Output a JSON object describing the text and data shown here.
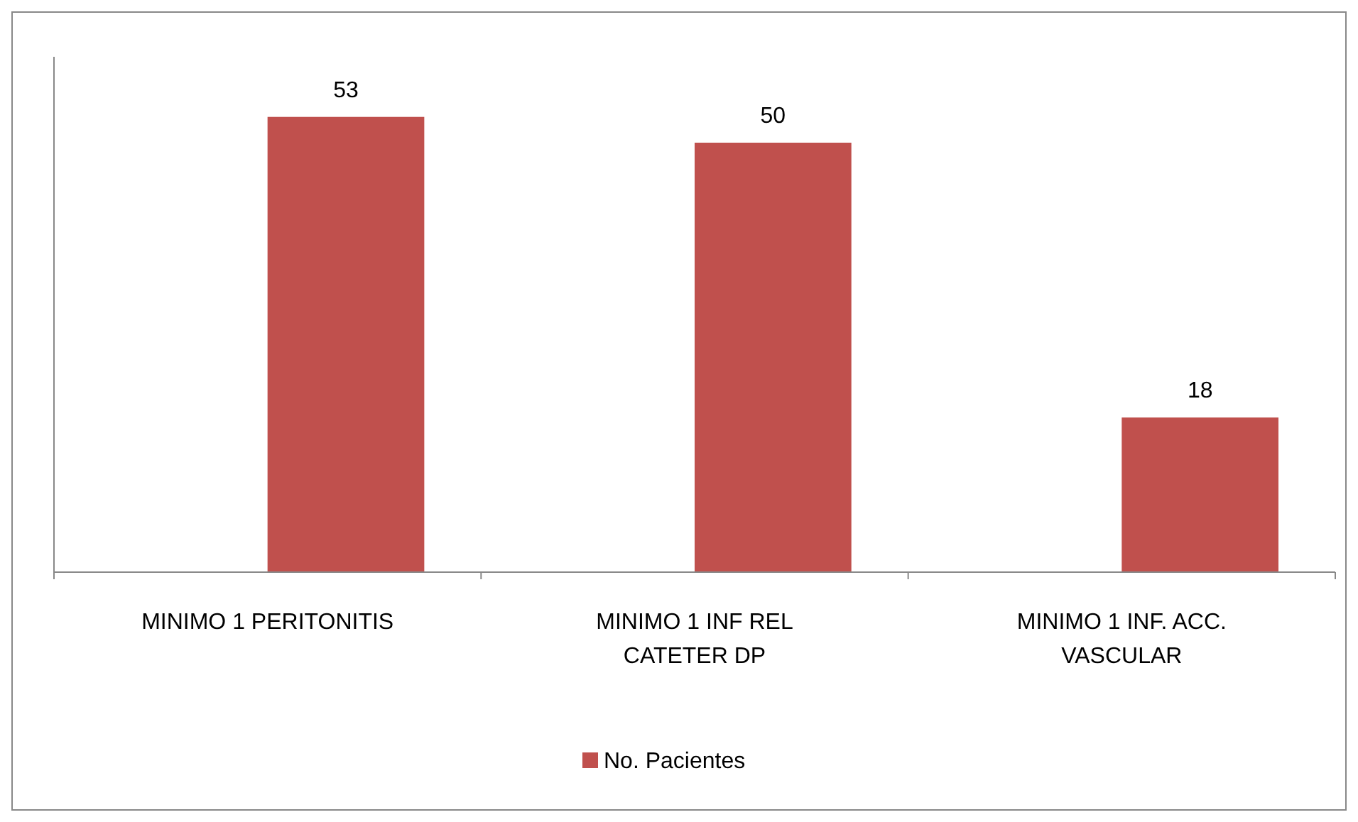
{
  "chart_data": {
    "type": "bar",
    "categories": [
      "MINIMO 1 PERITONITIS",
      "MINIMO 1 INF REL CATETER DP",
      "MINIMO 1 INF. ACC. VASCULAR"
    ],
    "series": [
      {
        "name": "No. Pacientes",
        "color": "#c0504d",
        "values": [
          53,
          50,
          18
        ]
      }
    ],
    "ylim": [
      0,
      60
    ],
    "data_labels": true,
    "legend": "bottom",
    "tick_labels": "x"
  }
}
